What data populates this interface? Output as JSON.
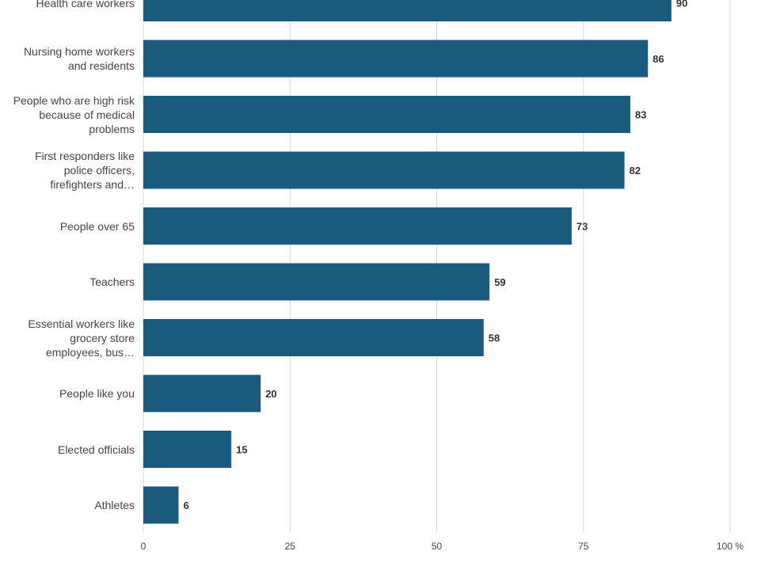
{
  "chart_data": {
    "type": "bar",
    "orientation": "horizontal",
    "categories": [
      "Health care workers",
      "Nursing home workers and residents",
      "People who are high risk because of medical problems",
      "First responders like police officers, firefighters and…",
      "People over 65",
      "Teachers",
      "Essential workers like grocery store employees, bus…",
      "People like you",
      "Elected officials",
      "Athletes"
    ],
    "category_lines": [
      [
        "Health care workers"
      ],
      [
        "Nursing home workers",
        "and residents"
      ],
      [
        "People who are high risk",
        "because of medical",
        "problems"
      ],
      [
        "First responders like",
        "police officers,",
        "firefighters and…"
      ],
      [
        "People over 65"
      ],
      [
        "Teachers"
      ],
      [
        "Essential workers like",
        "grocery store",
        "employees, bus…"
      ],
      [
        "People like you"
      ],
      [
        "Elected officials"
      ],
      [
        "Athletes"
      ]
    ],
    "values": [
      90,
      86,
      83,
      82,
      73,
      59,
      58,
      20,
      15,
      6
    ],
    "xlim": [
      0,
      100
    ],
    "xticks": [
      "0",
      "25",
      "50",
      "75",
      "100 %"
    ],
    "xtick_values": [
      0,
      25,
      50,
      75,
      100
    ],
    "bar_color": "#1a5a7a",
    "grid": true,
    "data_labels": true
  },
  "footnote": ""
}
